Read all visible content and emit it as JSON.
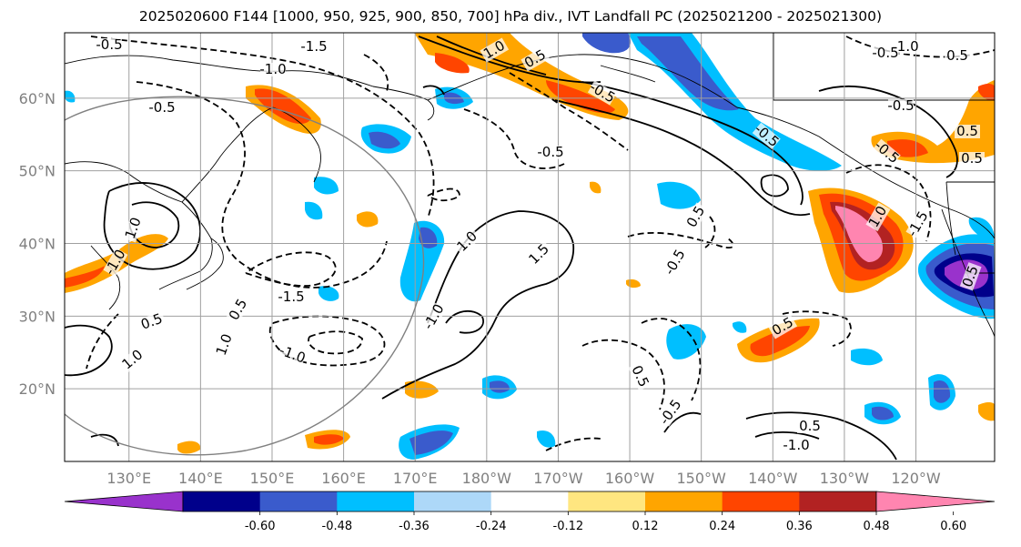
{
  "title": "2025020600 F144 [1000, 950, 925, 900, 850, 700] hPa div., IVT Landfall PC (2025021200 - 2025021300)",
  "map": {
    "lat_labels": [
      "60°N",
      "50°N",
      "40°N",
      "30°N",
      "20°N"
    ],
    "lon_labels": [
      "130°E",
      "140°E",
      "150°E",
      "160°E",
      "170°E",
      "180°W",
      "170°W",
      "160°W",
      "150°W",
      "140°W",
      "130°W",
      "120°W"
    ],
    "lat_values": [
      60,
      50,
      40,
      30,
      20
    ],
    "lon_values": [
      130,
      140,
      150,
      160,
      170,
      180,
      190,
      200,
      210,
      220,
      230,
      240
    ],
    "lat_range": [
      10,
      69
    ],
    "lon_range": [
      121,
      251
    ],
    "grid": true,
    "contour_labels": [
      "-0.5",
      "-1.0",
      "-1.5",
      "-0.5",
      "0.5",
      "1.0",
      "-1.0",
      "1.0",
      "0.5",
      "-1.5",
      "-0.5",
      "0.5",
      "1.0",
      "-1.0",
      "1.5",
      "1.0",
      "-0.5",
      "0.5",
      "-0.5",
      "-0.5",
      "0.5",
      "-1.0",
      "-0.5",
      "0.5",
      "-0.5",
      "0.5",
      "1.0",
      "-1.5",
      "-0.5",
      "0.5",
      "-1.0",
      "0.5",
      "-0.5",
      "1.0",
      "0.5",
      "-1.0",
      "0.5"
    ]
  },
  "colorbar": {
    "tick_labels": [
      "-0.60",
      "-0.48",
      "-0.36",
      "-0.24",
      "-0.12",
      "0.12",
      "0.24",
      "0.36",
      "0.48",
      "0.60"
    ],
    "bins": [
      {
        "color": "#9932CC"
      },
      {
        "color": "#00008B"
      },
      {
        "color": "#3A5BCC"
      },
      {
        "color": "#00BFFF"
      },
      {
        "color": "#ADD8F8"
      },
      {
        "color": "#FFFFFF"
      },
      {
        "color": "#FFE680"
      },
      {
        "color": "#FFA500"
      },
      {
        "color": "#FF4500"
      },
      {
        "color": "#B22222"
      },
      {
        "color": "#FF85B0"
      }
    ]
  }
}
